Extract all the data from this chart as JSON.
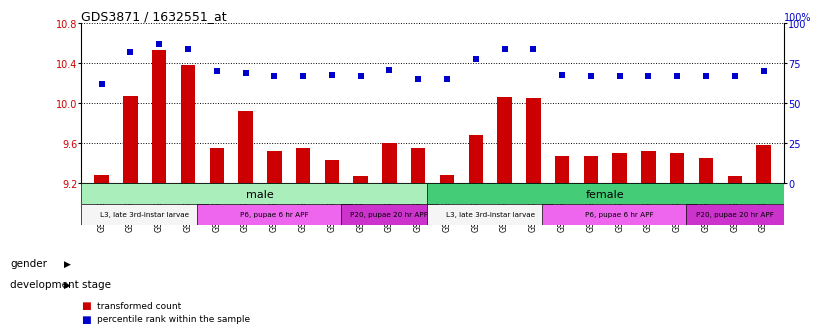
{
  "title": "GDS3871 / 1632551_at",
  "samples": [
    "GSM572821",
    "GSM572822",
    "GSM572823",
    "GSM572824",
    "GSM572829",
    "GSM572830",
    "GSM572831",
    "GSM572832",
    "GSM572837",
    "GSM572838",
    "GSM572839",
    "GSM572840",
    "GSM572817",
    "GSM572818",
    "GSM572819",
    "GSM572820",
    "GSM572825",
    "GSM572826",
    "GSM572827",
    "GSM572828",
    "GSM572833",
    "GSM572834",
    "GSM572835",
    "GSM572836"
  ],
  "transformed_count": [
    9.28,
    10.07,
    10.53,
    10.38,
    9.55,
    9.92,
    9.52,
    9.55,
    9.43,
    9.27,
    9.6,
    9.55,
    9.28,
    9.68,
    10.06,
    10.05,
    9.47,
    9.47,
    9.5,
    9.52,
    9.5,
    9.45,
    9.27,
    9.58
  ],
  "percentile_rank": [
    62,
    82,
    87,
    84,
    70,
    69,
    67,
    67,
    68,
    67,
    71,
    65,
    65,
    78,
    84,
    84,
    68,
    67,
    67,
    67,
    67,
    67,
    67,
    70
  ],
  "ylim_left": [
    9.2,
    10.8
  ],
  "ylim_right": [
    0,
    100
  ],
  "yticks_left": [
    9.2,
    9.6,
    10.0,
    10.4,
    10.8
  ],
  "yticks_right": [
    0,
    25,
    50,
    75,
    100
  ],
  "bar_color": "#cc0000",
  "dot_color": "#0000cc",
  "gender_groups": [
    {
      "label": "male",
      "start": 0,
      "end": 12,
      "color": "#aaeebb"
    },
    {
      "label": "female",
      "start": 12,
      "end": 24,
      "color": "#44cc77"
    }
  ],
  "dev_stage_groups": [
    {
      "label": "L3, late 3rd-instar larvae",
      "start": 0,
      "end": 4,
      "color": "#f5f5f5"
    },
    {
      "label": "P6, pupae 6 hr APF",
      "start": 4,
      "end": 9,
      "color": "#ee66ee"
    },
    {
      "label": "P20, pupae 20 hr APF",
      "start": 9,
      "end": 12,
      "color": "#cc33cc"
    },
    {
      "label": "L3, late 3rd-instar larvae",
      "start": 12,
      "end": 16,
      "color": "#f5f5f5"
    },
    {
      "label": "P6, pupae 6 hr APF",
      "start": 16,
      "end": 21,
      "color": "#ee66ee"
    },
    {
      "label": "P20, pupae 20 hr APF",
      "start": 21,
      "end": 24,
      "color": "#cc33cc"
    }
  ],
  "legend_bar_label": "transformed count",
  "legend_dot_label": "percentile rank within the sample",
  "right_axis_top_label": "100%"
}
